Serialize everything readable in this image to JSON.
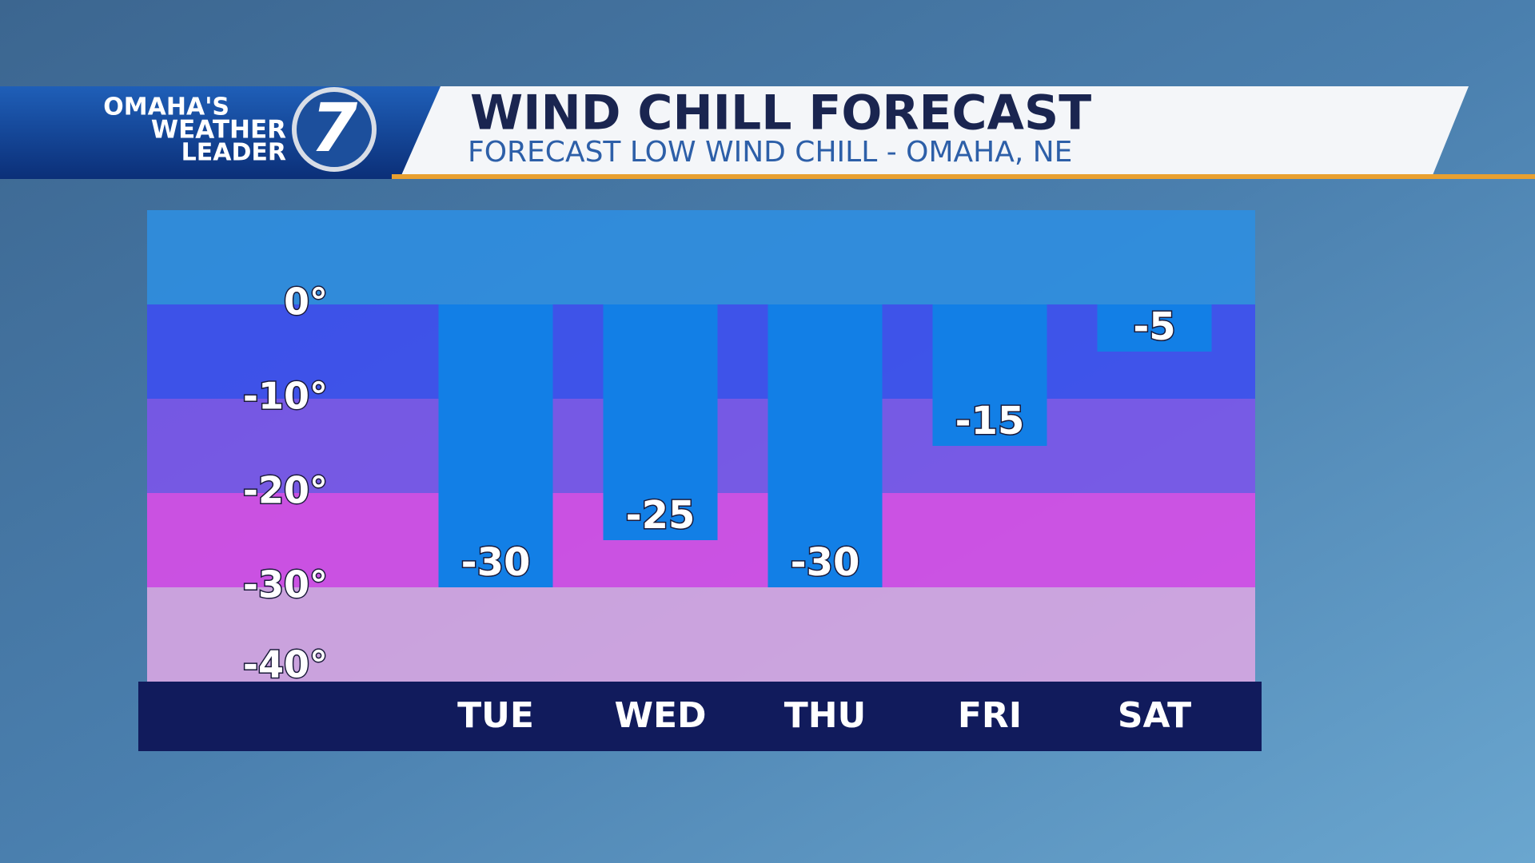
{
  "header": {
    "logo_lines": [
      "OMAHA'S",
      "WEATHER",
      "LEADER"
    ],
    "logo_number": "7"
  },
  "chart_data": {
    "type": "bar",
    "title": "WIND CHILL FORECAST",
    "subtitle": "FORECAST LOW WIND CHILL - OMAHA, NE",
    "categories": [
      "TUE",
      "WED",
      "THU",
      "FRI",
      "SAT"
    ],
    "values": [
      -30,
      -25,
      -30,
      -15,
      -5
    ],
    "color": "#127fe6",
    "ylim": [
      -40,
      10
    ],
    "yticks": [
      {
        "value": 0,
        "label": "0°"
      },
      {
        "value": -10,
        "label": "-10°"
      },
      {
        "value": -20,
        "label": "-20°"
      },
      {
        "value": -30,
        "label": "-30°"
      },
      {
        "value": -40,
        "label": "-40°"
      }
    ],
    "band_colors": [
      "#2f8ee0",
      "#3d4ff0",
      "#7b55ea",
      "#d84ce8",
      "#d8a6e2"
    ]
  }
}
